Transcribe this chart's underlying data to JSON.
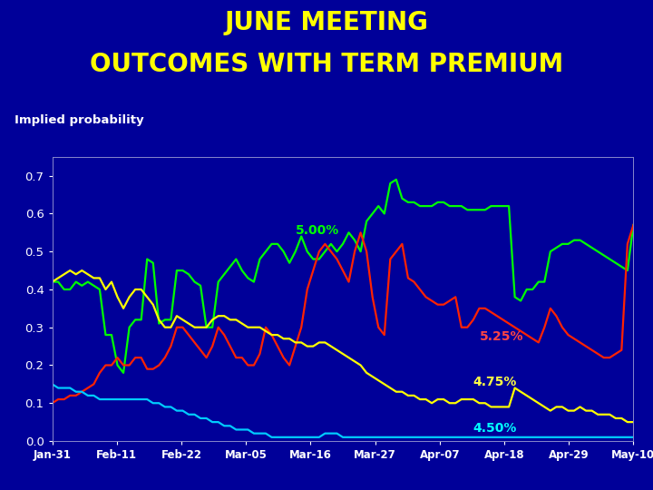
{
  "title_line1": "JUNE MEETING",
  "title_line2": "OUTCOMES WITH TERM PREMIUM",
  "ylabel": "Implied probability",
  "background_color": "#000099",
  "title_color": "#FFFF00",
  "ylabel_color": "#FFFFFF",
  "tick_label_color": "#FFFFFF",
  "xlabel_color": "#FFFFFF",
  "ylim": [
    0.0,
    0.75
  ],
  "yticks": [
    0.0,
    0.1,
    0.2,
    0.3,
    0.4,
    0.5,
    0.6,
    0.7
  ],
  "xtick_labels": [
    "Jan-31",
    "Feb-11",
    "Feb-22",
    "Mar-05",
    "Mar-16",
    "Mar-27",
    "Apr-07",
    "Apr-18",
    "Apr-29",
    "May-10"
  ],
  "green_color": "#00FF00",
  "red_color": "#FF2200",
  "yellow_color": "#FFFF00",
  "cyan_color": "#00CCFF",
  "green_label": "5.00%",
  "red_label": "5.25%",
  "yellow_label": "4.75%",
  "cyan_label": "4.50%",
  "green_label_color": "#00FF00",
  "red_label_color": "#FF4444",
  "yellow_label_color": "#FFFF44",
  "cyan_label_color": "#00FFFF",
  "green_data": [
    0.42,
    0.42,
    0.4,
    0.4,
    0.42,
    0.41,
    0.42,
    0.41,
    0.4,
    0.28,
    0.28,
    0.2,
    0.18,
    0.3,
    0.32,
    0.32,
    0.48,
    0.47,
    0.31,
    0.32,
    0.32,
    0.45,
    0.45,
    0.44,
    0.42,
    0.41,
    0.3,
    0.3,
    0.42,
    0.44,
    0.46,
    0.48,
    0.45,
    0.43,
    0.42,
    0.48,
    0.5,
    0.52,
    0.52,
    0.5,
    0.47,
    0.5,
    0.54,
    0.5,
    0.48,
    0.48,
    0.5,
    0.52,
    0.5,
    0.52,
    0.55,
    0.53,
    0.5,
    0.58,
    0.6,
    0.62,
    0.6,
    0.68,
    0.69,
    0.64,
    0.63,
    0.63,
    0.62,
    0.62,
    0.62,
    0.63,
    0.63,
    0.62,
    0.62,
    0.62,
    0.61,
    0.61,
    0.61,
    0.61,
    0.62,
    0.62,
    0.62,
    0.62,
    0.38,
    0.37,
    0.4,
    0.4,
    0.42,
    0.42,
    0.5,
    0.51,
    0.52,
    0.52,
    0.53,
    0.53,
    0.52,
    0.51,
    0.5,
    0.49,
    0.48,
    0.47,
    0.46,
    0.45,
    0.57
  ],
  "red_data": [
    0.1,
    0.11,
    0.11,
    0.12,
    0.12,
    0.13,
    0.14,
    0.15,
    0.18,
    0.2,
    0.2,
    0.22,
    0.2,
    0.2,
    0.22,
    0.22,
    0.19,
    0.19,
    0.2,
    0.22,
    0.25,
    0.3,
    0.3,
    0.28,
    0.26,
    0.24,
    0.22,
    0.25,
    0.3,
    0.28,
    0.25,
    0.22,
    0.22,
    0.2,
    0.2,
    0.23,
    0.3,
    0.28,
    0.25,
    0.22,
    0.2,
    0.25,
    0.3,
    0.4,
    0.45,
    0.5,
    0.52,
    0.5,
    0.48,
    0.45,
    0.42,
    0.5,
    0.55,
    0.5,
    0.38,
    0.3,
    0.28,
    0.48,
    0.5,
    0.52,
    0.43,
    0.42,
    0.4,
    0.38,
    0.37,
    0.36,
    0.36,
    0.37,
    0.38,
    0.3,
    0.3,
    0.32,
    0.35,
    0.35,
    0.34,
    0.33,
    0.32,
    0.31,
    0.3,
    0.29,
    0.28,
    0.27,
    0.26,
    0.3,
    0.35,
    0.33,
    0.3,
    0.28,
    0.27,
    0.26,
    0.25,
    0.24,
    0.23,
    0.22,
    0.22,
    0.23,
    0.24,
    0.52,
    0.57
  ],
  "yellow_data": [
    0.42,
    0.43,
    0.44,
    0.45,
    0.44,
    0.45,
    0.44,
    0.43,
    0.43,
    0.4,
    0.42,
    0.38,
    0.35,
    0.38,
    0.4,
    0.4,
    0.38,
    0.36,
    0.32,
    0.3,
    0.3,
    0.33,
    0.32,
    0.31,
    0.3,
    0.3,
    0.3,
    0.32,
    0.33,
    0.33,
    0.32,
    0.32,
    0.31,
    0.3,
    0.3,
    0.3,
    0.29,
    0.28,
    0.28,
    0.27,
    0.27,
    0.26,
    0.26,
    0.25,
    0.25,
    0.26,
    0.26,
    0.25,
    0.24,
    0.23,
    0.22,
    0.21,
    0.2,
    0.18,
    0.17,
    0.16,
    0.15,
    0.14,
    0.13,
    0.13,
    0.12,
    0.12,
    0.11,
    0.11,
    0.1,
    0.11,
    0.11,
    0.1,
    0.1,
    0.11,
    0.11,
    0.11,
    0.1,
    0.1,
    0.09,
    0.09,
    0.09,
    0.09,
    0.14,
    0.13,
    0.12,
    0.11,
    0.1,
    0.09,
    0.08,
    0.09,
    0.09,
    0.08,
    0.08,
    0.09,
    0.08,
    0.08,
    0.07,
    0.07,
    0.07,
    0.06,
    0.06,
    0.05,
    0.05
  ],
  "cyan_data": [
    0.15,
    0.14,
    0.14,
    0.14,
    0.13,
    0.13,
    0.12,
    0.12,
    0.11,
    0.11,
    0.11,
    0.11,
    0.11,
    0.11,
    0.11,
    0.11,
    0.11,
    0.1,
    0.1,
    0.09,
    0.09,
    0.08,
    0.08,
    0.07,
    0.07,
    0.06,
    0.06,
    0.05,
    0.05,
    0.04,
    0.04,
    0.03,
    0.03,
    0.03,
    0.02,
    0.02,
    0.02,
    0.01,
    0.01,
    0.01,
    0.01,
    0.01,
    0.01,
    0.01,
    0.01,
    0.01,
    0.02,
    0.02,
    0.02,
    0.01,
    0.01,
    0.01,
    0.01,
    0.01,
    0.01,
    0.01,
    0.01,
    0.01,
    0.01,
    0.01,
    0.01,
    0.01,
    0.01,
    0.01,
    0.01,
    0.01,
    0.01,
    0.01,
    0.01,
    0.01,
    0.01,
    0.01,
    0.01,
    0.01,
    0.01,
    0.01,
    0.01,
    0.01,
    0.01,
    0.01,
    0.01,
    0.01,
    0.01,
    0.01,
    0.01,
    0.01,
    0.01,
    0.01,
    0.01,
    0.01,
    0.01,
    0.01,
    0.01,
    0.01,
    0.01,
    0.01,
    0.01,
    0.01,
    0.01
  ]
}
